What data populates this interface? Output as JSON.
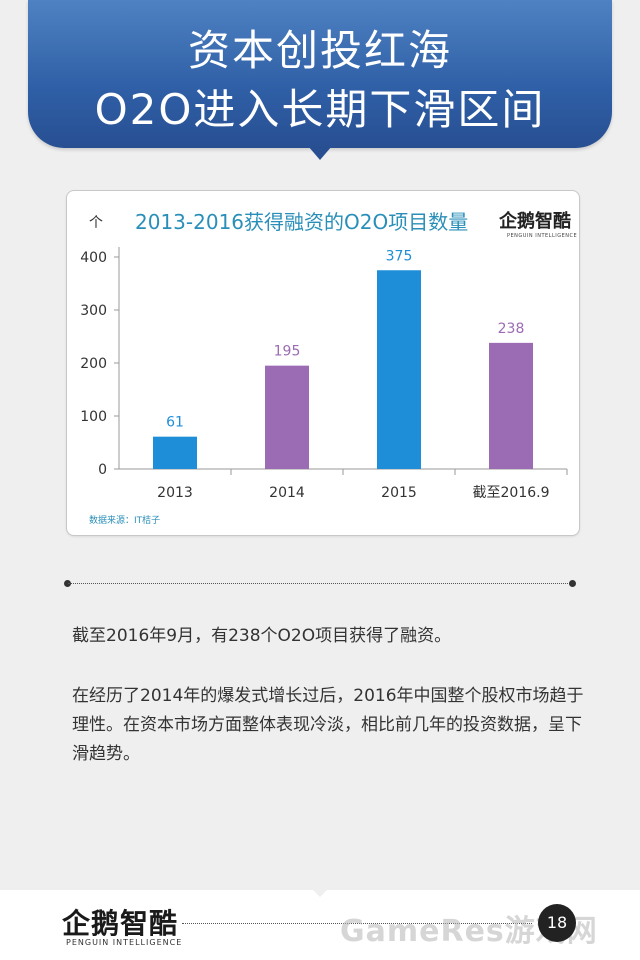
{
  "header": {
    "line1": "资本创投红海",
    "line2": "O2O进入长期下滑区间"
  },
  "chart_logo": {
    "main": "企鹅智酷",
    "sub": "PENGUIN INTELLIGENCE"
  },
  "chart_data": {
    "type": "bar",
    "title": "2013-2016获得融资的O2O项目数量",
    "ylabel": "个",
    "xlabel": "",
    "categories": [
      "2013",
      "2014",
      "2015",
      "截至2016.9"
    ],
    "values": [
      61,
      195,
      375,
      238
    ],
    "bar_colors": [
      "#1f8ed8",
      "#9b6cb3",
      "#1f8ed8",
      "#9b6cb3"
    ],
    "label_colors": [
      "#1f8ed8",
      "#9b6cb3",
      "#1f8ed8",
      "#9b6cb3"
    ],
    "yticks": [
      0,
      100,
      200,
      300,
      400
    ],
    "ylim": [
      0,
      400
    ],
    "grid": false,
    "source": "数据来源：IT桔子"
  },
  "body": {
    "para1": "截至2016年9月，有238个O2O项目获得了融资。",
    "para2": "在经历了2014年的爆发式增长过后，2016年中国整个股权市场趋于理性。在资本市场方面整体表现冷淡，相比前几年的投资数据，呈下滑趋势。"
  },
  "footer": {
    "logo": "企鹅智酷",
    "logo_sub": "PENGUIN INTELLIGENCE",
    "page_number": "18",
    "watermark": "GameRes游戏网"
  },
  "colors": {
    "header_blue": "#2f5fa6",
    "title_teal": "#2a8fb8",
    "bar_blue": "#1f8ed8",
    "bar_purple": "#9b6cb3"
  }
}
